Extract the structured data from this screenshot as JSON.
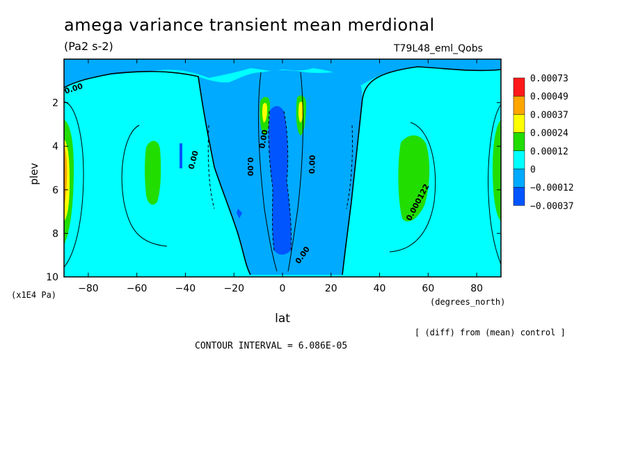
{
  "header": {
    "title": "amega variance transient mean merdional",
    "units": "(Pa2 s-2)",
    "run_id": "T79L48_eml_Qobs"
  },
  "footer": {
    "diff_note": "[ (diff) from (mean) control ]",
    "contour_interval": "CONTOUR INTERVAL = 6.086E-05"
  },
  "chart_data": {
    "type": "heatmap",
    "title": "amega variance transient mean merdional",
    "subtitle": "(Pa2 s-2)",
    "xlabel": "lat",
    "xunits": "(degrees_north)",
    "ylabel": "plev",
    "yunits": "(x1E4 Pa)",
    "xlim": [
      -90,
      90
    ],
    "ylim": [
      10,
      0
    ],
    "x_ticks": [
      -80,
      -60,
      -40,
      -20,
      0,
      20,
      40,
      60,
      80
    ],
    "x_tick_labels": [
      "-80",
      "-60",
      "-40",
      "-20",
      "0",
      "20",
      "40",
      "60",
      "80"
    ],
    "y_ticks": [
      2,
      4,
      6,
      8,
      10
    ],
    "y_tick_labels": [
      "2",
      "4",
      "6",
      "8",
      "10"
    ],
    "legend_placement": "right",
    "colorbar": {
      "labels": [
        "0.00073",
        "0.00049",
        "0.00037",
        "0.00024",
        "0.00012",
        "0",
        "-0.00012",
        "-0.00037"
      ],
      "colors": [
        "#ff1a1a",
        "#ffa500",
        "#ffff00",
        "#22dd00",
        "#00ffff",
        "#00aaff",
        "#0055ff"
      ]
    },
    "contour_labels": [
      "0.00",
      "0.00",
      "0.00",
      "0.00",
      "0.00",
      "0.00",
      "0.000122"
    ],
    "note": "[ (diff) from (mean) control ]",
    "contour_interval": "6.086E-05"
  }
}
